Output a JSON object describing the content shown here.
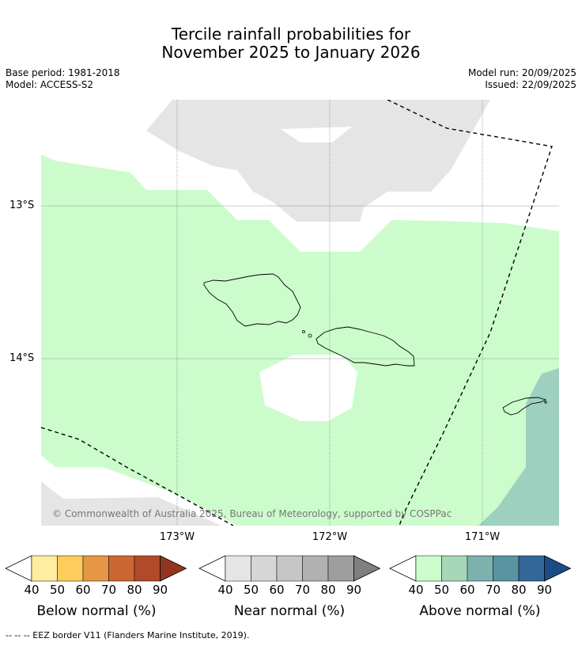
{
  "title": {
    "line1": "Tercile rainfall probabilities for",
    "line2": "November 2025 to January 2026"
  },
  "meta_left": {
    "base_period": "Base period: 1981-2018",
    "model": "Model: ACCESS-S2"
  },
  "meta_right": {
    "model_run": "Model run: 20/09/2025",
    "issued": "Issued: 22/09/2025"
  },
  "map": {
    "lat_labels": [
      "13°S",
      "14°S"
    ],
    "lon_labels": [
      "173°W",
      "172°W",
      "171°W"
    ],
    "copyright": "© Commonwealth of Australia 2025, Bureau of Meteorology, supported by COSPPac",
    "colors": {
      "near_normal_light": "#e5e5e5",
      "above_40": "#ccfccc",
      "above_60": "#9ed0c0",
      "ocean_blank": "#ffffff"
    }
  },
  "legend": {
    "ticks": [
      "40",
      "50",
      "60",
      "70",
      "80",
      "90"
    ],
    "below": {
      "label": "Below normal (%)",
      "colors": [
        "#ffeda0",
        "#fecc5c",
        "#e59645",
        "#cc6633",
        "#b04a29",
        "#94351f"
      ]
    },
    "near": {
      "label": "Near normal (%)",
      "colors": [
        "#e5e5e5",
        "#d6d6d6",
        "#c6c6c6",
        "#b1b1b1",
        "#9e9e9e",
        "#7f7f7f"
      ]
    },
    "above": {
      "label": "Above normal (%)",
      "colors": [
        "#ccfccc",
        "#a6d8b8",
        "#7cb2ae",
        "#5a93a2",
        "#336699",
        "#1a4d86"
      ]
    }
  },
  "footnote": "--  --  -- EEZ border V11 (Flanders Marine Institute, 2019)."
}
